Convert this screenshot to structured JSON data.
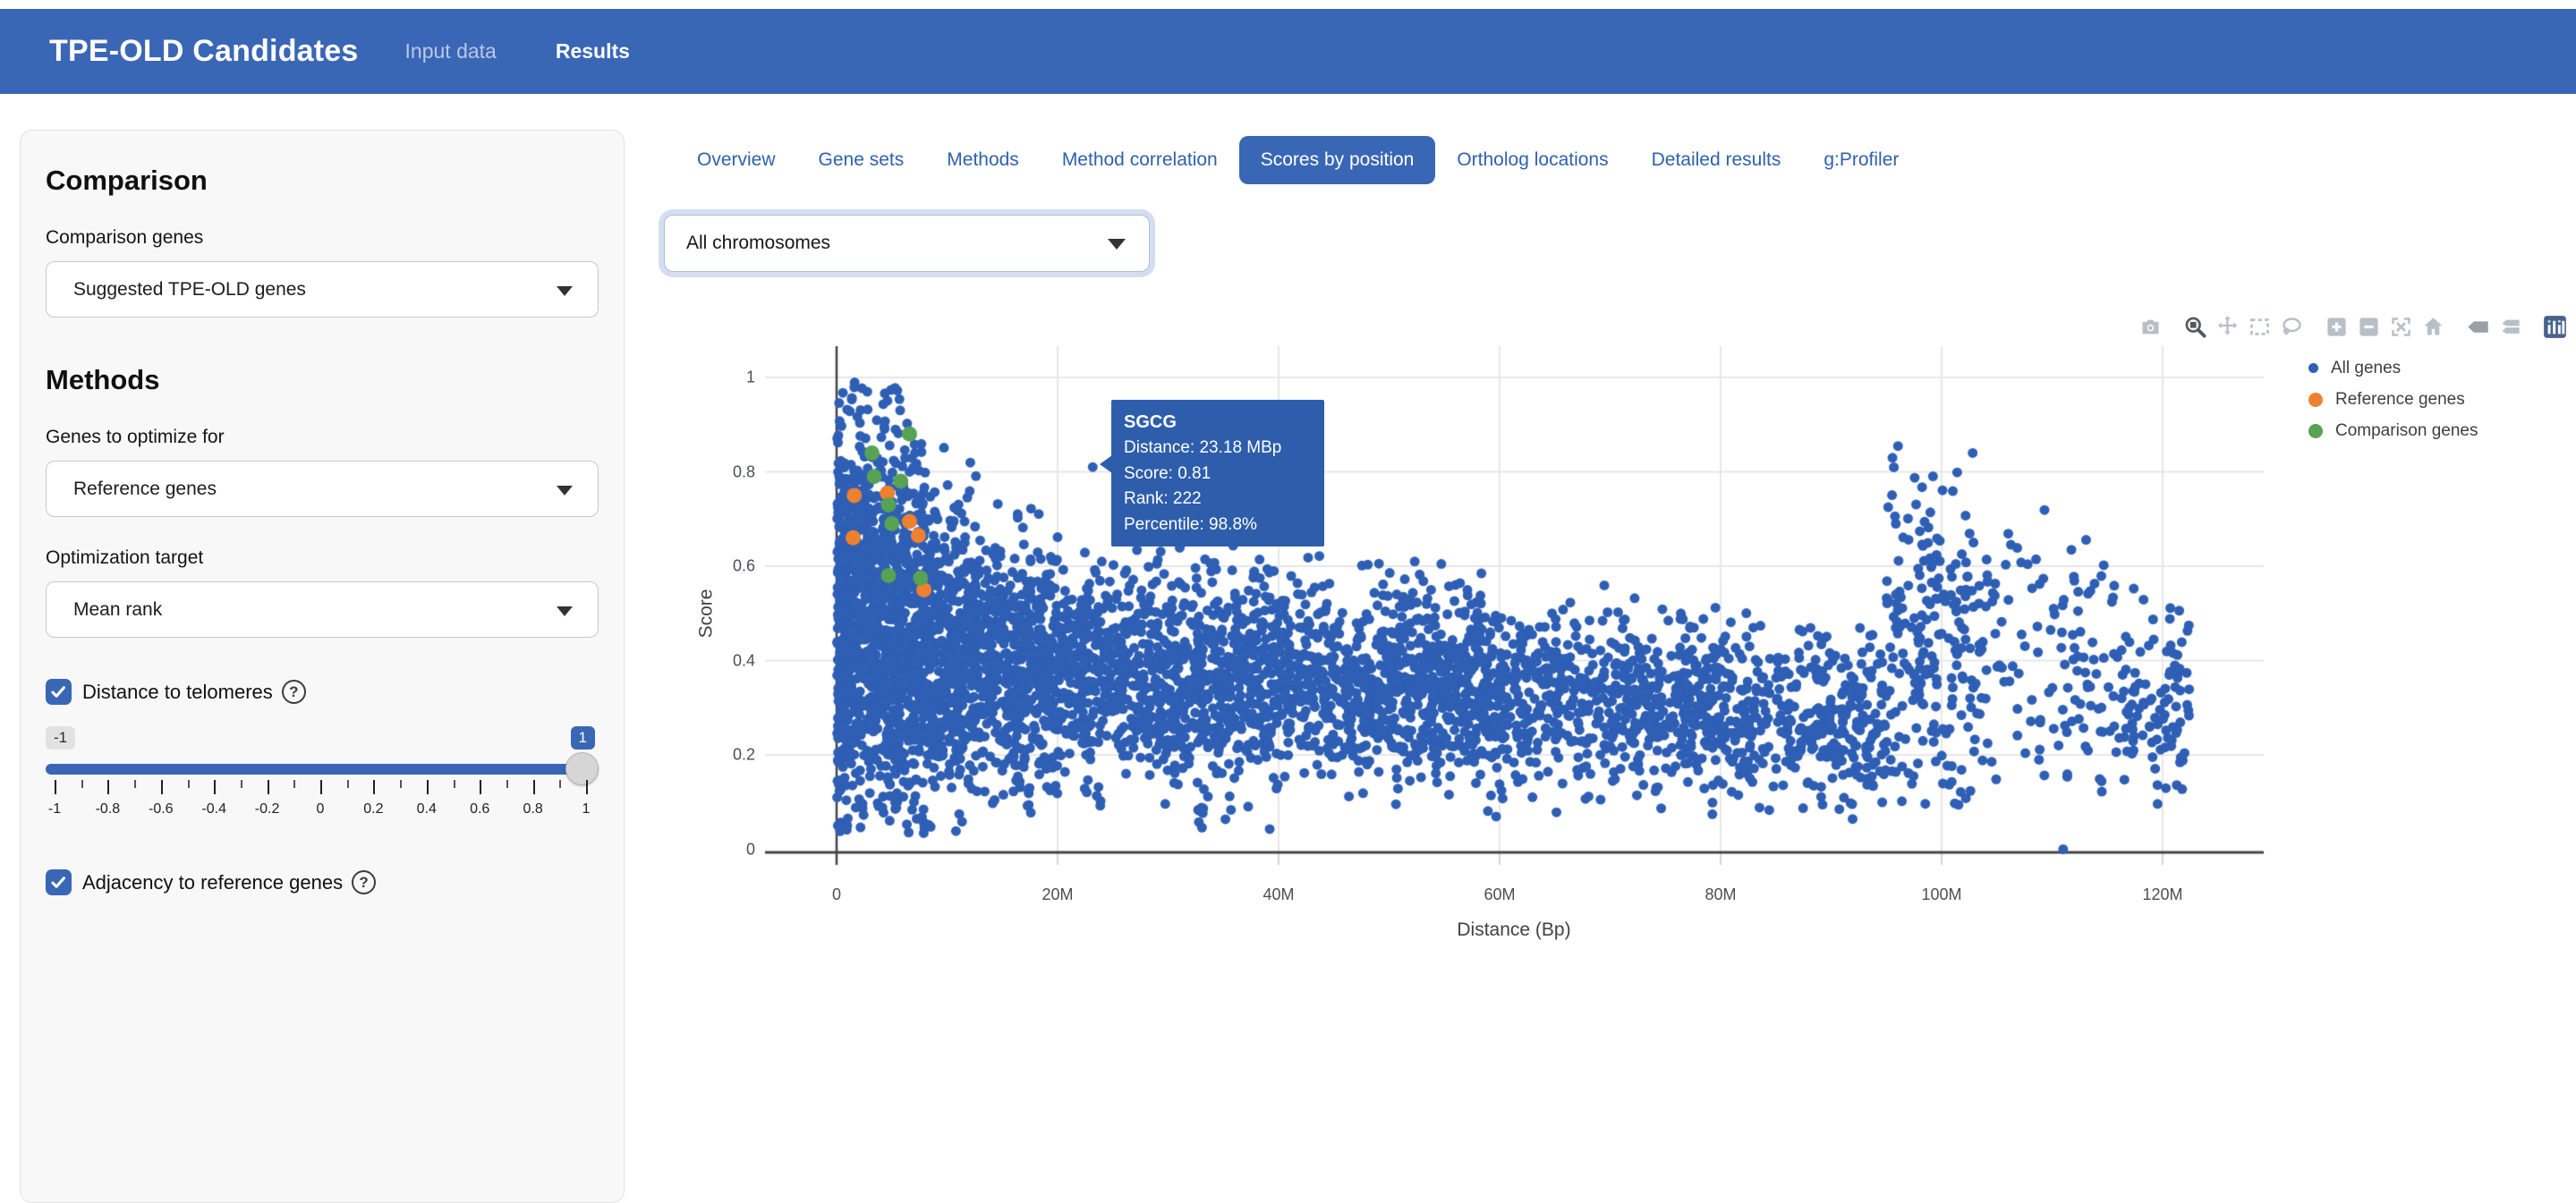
{
  "navbar": {
    "brand": "TPE-OLD Candidates",
    "items": [
      {
        "label": "Input data",
        "active": false
      },
      {
        "label": "Results",
        "active": true
      }
    ]
  },
  "tabs": [
    {
      "label": "Overview",
      "active": false
    },
    {
      "label": "Gene sets",
      "active": false
    },
    {
      "label": "Methods",
      "active": false
    },
    {
      "label": "Method correlation",
      "active": false
    },
    {
      "label": "Scores by position",
      "active": true
    },
    {
      "label": "Ortholog locations",
      "active": false
    },
    {
      "label": "Detailed results",
      "active": false
    },
    {
      "label": "g:Profiler",
      "active": false
    }
  ],
  "chromosome_select": {
    "value": "All chromosomes"
  },
  "sidebar": {
    "section1_title": "Comparison",
    "comparison_genes_label": "Comparison genes",
    "comparison_genes_value": "Suggested TPE-OLD genes",
    "section2_title": "Methods",
    "optimize_label": "Genes to optimize for",
    "optimize_value": "Reference genes",
    "target_label": "Optimization target",
    "target_value": "Mean rank",
    "checkbox1_label": "Distance to telomeres",
    "checkbox2_label": "Adjacency to reference genes",
    "slider": {
      "min_badge": "-1",
      "value_badge": "1",
      "tick_labels": [
        "-1",
        "-0.8",
        "-0.6",
        "-0.4",
        "-0.2",
        "0",
        "0.2",
        "0.4",
        "0.6",
        "0.8",
        "1"
      ]
    }
  },
  "chart_data": {
    "type": "scatter",
    "xlabel": "Distance (Bp)",
    "ylabel": "Score",
    "x_ticks": [
      {
        "mbp": 0,
        "label": "0"
      },
      {
        "mbp": 20,
        "label": "20M"
      },
      {
        "mbp": 40,
        "label": "40M"
      },
      {
        "mbp": 60,
        "label": "60M"
      },
      {
        "mbp": 80,
        "label": "80M"
      },
      {
        "mbp": 100,
        "label": "100M"
      },
      {
        "mbp": 120,
        "label": "120M"
      }
    ],
    "y_ticks": [
      {
        "value": 0,
        "label": "0"
      },
      {
        "value": 0.2,
        "label": "0.2"
      },
      {
        "value": 0.4,
        "label": "0.4"
      },
      {
        "value": 0.6,
        "label": "0.6"
      },
      {
        "value": 0.8,
        "label": "0.8"
      },
      {
        "value": 1,
        "label": "1"
      }
    ],
    "x_range_mbp": [
      -6.5,
      129
    ],
    "y_range": [
      -0.006,
      1.066
    ],
    "grid": true,
    "legend_position": "right",
    "colors": {
      "all_genes": "#2e5fb5",
      "reference_genes": "#ee8130",
      "comparison_genes": "#57a253",
      "tooltip_bg": "#2e5dac",
      "accent_blue": "#3a66b6"
    },
    "series": [
      {
        "name": "All genes",
        "color": "#2e5fb5",
        "marker_radius": 5.5,
        "kind": "generated-cloud"
      },
      {
        "name": "Reference genes",
        "color": "#ee8130",
        "marker_radius": 8.5,
        "points_mbp_score": [
          [
            1.6,
            0.75
          ],
          [
            4.6,
            0.755
          ],
          [
            1.5,
            0.66
          ],
          [
            6.6,
            0.695
          ],
          [
            7.4,
            0.665
          ],
          [
            7.9,
            0.55
          ]
        ]
      },
      {
        "name": "Comparison genes",
        "color": "#57a253",
        "marker_radius": 8.5,
        "points_mbp_score": [
          [
            6.6,
            0.88
          ],
          [
            3.2,
            0.84
          ],
          [
            3.4,
            0.79
          ],
          [
            5.8,
            0.78
          ],
          [
            4.7,
            0.73
          ],
          [
            5.0,
            0.69
          ],
          [
            4.7,
            0.58
          ],
          [
            7.6,
            0.575
          ]
        ]
      }
    ],
    "highlight_point": {
      "gene": "SGCG",
      "x_mbp": 23.18,
      "score": 0.81
    },
    "isolated_points": [
      [
        111,
        0.0
      ]
    ],
    "cloud_seed": 42,
    "cloud_segments": [
      {
        "x0": 0.05,
        "x1": 1.2,
        "n": 300,
        "yc0": 0.45,
        "yc1": 0.45,
        "sd": 0.21,
        "ymin": 0.03,
        "ymax": 0.97
      },
      {
        "x0": 1.2,
        "x1": 8,
        "n": 1050,
        "yc0": 0.52,
        "yc1": 0.44,
        "sd": 0.2,
        "ymin": 0.03,
        "ymax": 1.0
      },
      {
        "x0": 8,
        "x1": 13,
        "n": 500,
        "yc0": 0.44,
        "yc1": 0.4,
        "sd": 0.15,
        "ymin": 0.03,
        "ymax": 0.9
      },
      {
        "x0": 13,
        "x1": 20,
        "n": 520,
        "yc0": 0.4,
        "yc1": 0.37,
        "sd": 0.125,
        "ymin": 0.03,
        "ymax": 0.76
      },
      {
        "x0": 20,
        "x1": 40,
        "n": 1000,
        "yc0": 0.37,
        "yc1": 0.355,
        "sd": 0.105,
        "ymin": 0.04,
        "ymax": 0.66
      },
      {
        "x0": 40,
        "x1": 60,
        "n": 850,
        "yc0": 0.355,
        "yc1": 0.33,
        "sd": 0.095,
        "ymin": 0.05,
        "ymax": 0.62
      },
      {
        "x0": 60,
        "x1": 80,
        "n": 600,
        "yc0": 0.33,
        "yc1": 0.3,
        "sd": 0.09,
        "ymin": 0.05,
        "ymax": 0.57
      },
      {
        "x0": 80,
        "x1": 95,
        "n": 380,
        "yc0": 0.3,
        "yc1": 0.27,
        "sd": 0.085,
        "ymin": 0.05,
        "ymax": 0.52
      },
      {
        "x0": 95,
        "x1": 103,
        "n": 200,
        "yc0": 0.42,
        "yc1": 0.4,
        "sd": 0.19,
        "ymin": 0.08,
        "ymax": 0.87
      },
      {
        "x0": 103,
        "x1": 116,
        "n": 130,
        "yc0": 0.4,
        "yc1": 0.35,
        "sd": 0.16,
        "ymin": 0.1,
        "ymax": 0.78
      },
      {
        "x0": 116,
        "x1": 122.5,
        "n": 100,
        "yc0": 0.3,
        "yc1": 0.3,
        "sd": 0.11,
        "ymin": 0.07,
        "ymax": 0.56
      },
      {
        "x0": 21,
        "x1": 58,
        "n": 45,
        "yc0": 0.6,
        "yc1": 0.55,
        "sd": 0.045,
        "ymin": 0.5,
        "ymax": 0.7
      },
      {
        "x0": 32.6,
        "x1": 33.4,
        "n": 10,
        "yc0": 0.15,
        "yc1": 0.15,
        "sd": 0.09,
        "ymin": 0.04,
        "ymax": 0.3
      }
    ],
    "tooltip": {
      "title": "SGCG",
      "lines": [
        "Distance: 23.18 MBp",
        "Score: 0.81",
        "Rank: 222",
        "Percentile: 98.8%"
      ]
    },
    "modebar": [
      "camera",
      "zoom",
      "pan",
      "box-select",
      "lasso",
      "zoom-in",
      "zoom-out",
      "autoscale",
      "reset-axes",
      "hover-closest",
      "hover-compare",
      "plotly-logo"
    ]
  }
}
